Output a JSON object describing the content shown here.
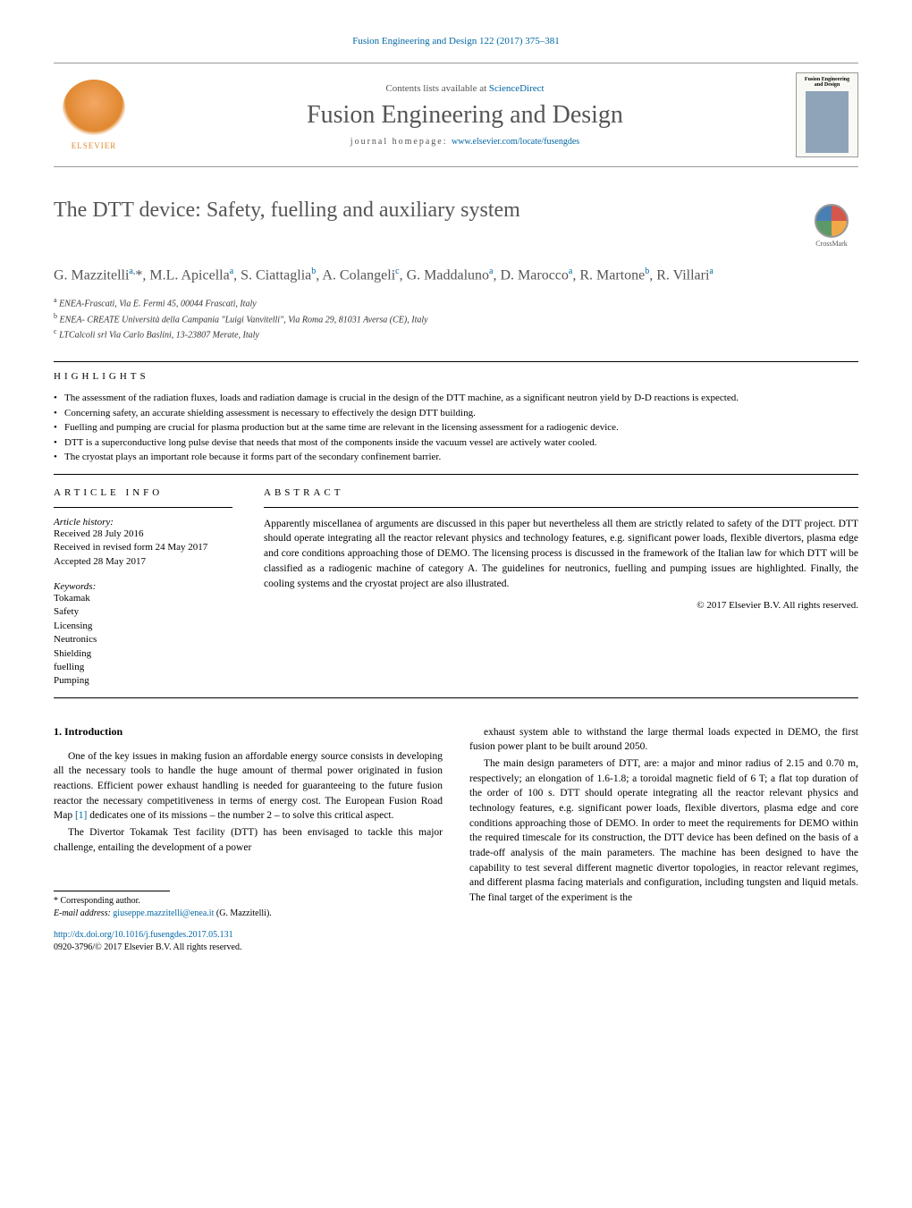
{
  "journal": {
    "header_ref": "Fusion Engineering and Design 122 (2017) 375–381",
    "contents_prefix": "Contents lists available at ",
    "contents_link": "ScienceDirect",
    "title": "Fusion Engineering and Design",
    "homepage_prefix": "journal homepage: ",
    "homepage_url": "www.elsevier.com/locate/fusengdes",
    "cover_title": "Fusion Engineering and Design",
    "publisher_label": "ELSEVIER"
  },
  "article": {
    "title": "The DTT device: Safety, fuelling and auxiliary system",
    "crossmark_label": "CrossMark",
    "authors_html": "G. Mazzitelli<sup>a,</sup>*, M.L. Apicella<sup>a</sup>, S. Ciattaglia<sup>b</sup>, A. Colangeli<sup>c</sup>, G. Maddaluno<sup>a</sup>, D. Marocco<sup>a</sup>, R. Martone<sup>b</sup>, R. Villari<sup>a</sup>",
    "affiliations": [
      "a ENEA-Frascati, Via E. Fermi 45, 00044 Frascati, Italy",
      "b ENEA- CREATE Università della Campania \"Luigi Vanvitelli\", Via Roma 29, 81031 Aversa (CE), Italy",
      "c LTCalcoli srl Via Carlo Baslini, 13-23807 Merate, Italy"
    ]
  },
  "highlights": {
    "label": "HIGHLIGHTS",
    "items": [
      "The assessment of the radiation fluxes, loads and radiation damage is crucial in the design of the DTT machine, as a significant neutron yield by D-D reactions is expected.",
      "Concerning safety, an accurate shielding assessment is necessary to effectively the design DTT building.",
      "Fuelling and pumping are crucial for plasma production but at the same time are relevant in the licensing assessment for a radiogenic device.",
      "DTT is a superconductive long pulse devise that needs that most of the components inside the vacuum vessel are actively water cooled.",
      "The cryostat plays an important role because it forms part of the secondary confinement barrier."
    ]
  },
  "article_info": {
    "label": "ARTICLE INFO",
    "history_label": "Article history:",
    "history": [
      "Received 28 July 2016",
      "Received in revised form 24 May 2017",
      "Accepted 28 May 2017"
    ],
    "keywords_label": "Keywords:",
    "keywords": [
      "Tokamak",
      "Safety",
      "Licensing",
      "Neutronics",
      "Shielding",
      "fuelling",
      "Pumping"
    ]
  },
  "abstract": {
    "label": "ABSTRACT",
    "text": "Apparently miscellanea of arguments are discussed in this paper but nevertheless all them are strictly related to safety of the DTT project. DTT should operate integrating all the reactor relevant physics and technology features, e.g. significant power loads, flexible divertors, plasma edge and core conditions approaching those of DEMO. The licensing process is discussed in the framework of the Italian law for which DTT will be classified as a radiogenic machine of category A. The guidelines for neutronics, fuelling and pumping issues are highlighted. Finally, the cooling systems and the cryostat project are also illustrated.",
    "copyright": "© 2017 Elsevier B.V. All rights reserved."
  },
  "body": {
    "section_heading": "1. Introduction",
    "col1_paragraphs": [
      "One of the key issues in making fusion an affordable energy source consists in developing all the necessary tools to handle the huge amount of thermal power originated in fusion reactions. Efficient power exhaust handling is needed for guaranteeing to the future fusion reactor the necessary competitiveness in terms of energy cost. The European Fusion Road Map [1] dedicates one of its missions – the number 2 – to solve this critical aspect.",
      "The Divertor Tokamak Test facility (DTT) has been envisaged to tackle this major challenge, entailing the development of a power"
    ],
    "col2_paragraphs": [
      "exhaust system able to withstand the large thermal loads expected in DEMO, the first fusion power plant to be built around 2050.",
      "The main design parameters of DTT, are: a major and minor radius of 2.15 and 0.70 m, respectively; an elongation of 1.6-1.8; a toroidal magnetic field of 6 T; a flat top duration of the order of 100 s. DTT should operate integrating all the reactor relevant physics and technology features, e.g. significant power loads, flexible divertors, plasma edge and core conditions approaching those of DEMO. In order to meet the requirements for DEMO within the required timescale for its construction, the DTT device has been defined on the basis of a trade-off analysis of the main parameters. The machine has been designed to have the capability to test several different magnetic divertor topologies, in reactor relevant regimes, and different plasma facing materials and configuration, including tungsten and liquid metals. The final target of the experiment is the"
    ]
  },
  "footer": {
    "corresponding_label": "* Corresponding author.",
    "email_label": "E-mail address: ",
    "email": "giuseppe.mazzitelli@enea.it",
    "email_name": " (G. Mazzitelli).",
    "doi": "http://dx.doi.org/10.1016/j.fusengdes.2017.05.131",
    "issn_line": "0920-3796/© 2017 Elsevier B.V. All rights reserved."
  },
  "styles": {
    "link_color": "#0066a4",
    "text_color": "#000000",
    "muted_color": "#555555",
    "elsevier_orange": "#e08830"
  }
}
